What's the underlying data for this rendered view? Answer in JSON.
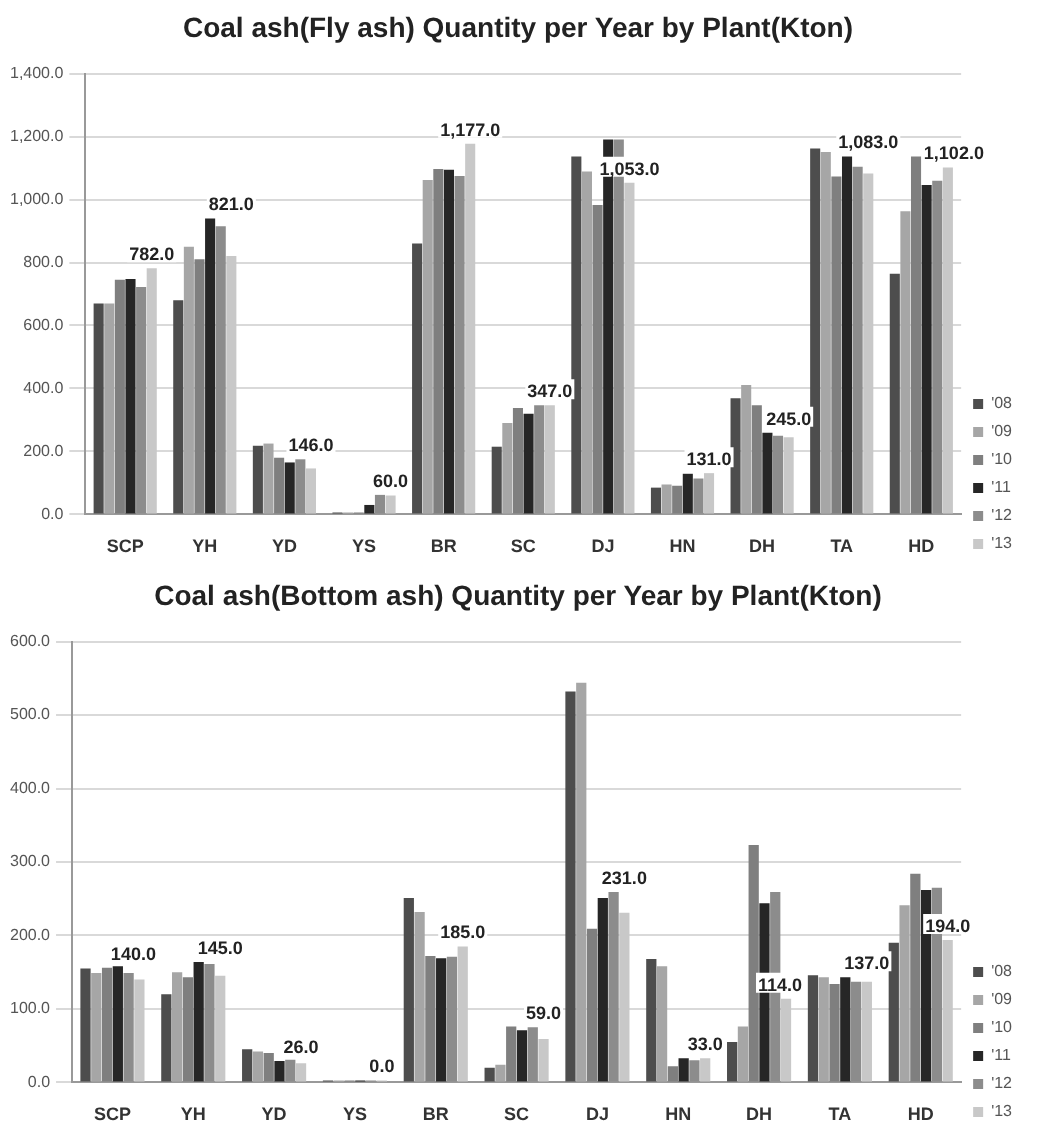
{
  "chart_data": [
    {
      "type": "bar",
      "title": "Coal ash(Fly ash) Quantity per Year by Plant(Kton)",
      "categories": [
        "SCP",
        "YH",
        "YD",
        "YS",
        "BR",
        "SC",
        "DJ",
        "HN",
        "DH",
        "TA",
        "HD"
      ],
      "series": [
        {
          "name": "'08",
          "color": "#4d4d4d",
          "values": [
            670,
            680,
            218,
            0,
            860,
            215,
            1137,
            85,
            369,
            1162,
            764
          ]
        },
        {
          "name": "'09",
          "color": "#a6a6a6",
          "values": [
            670,
            850,
            225,
            0,
            1062,
            290,
            1089,
            95,
            411,
            1151,
            963
          ]
        },
        {
          "name": "'10",
          "color": "#7f7f7f",
          "values": [
            745,
            810,
            180,
            0,
            1097,
            338,
            983,
            91,
            347,
            1073,
            1137
          ]
        },
        {
          "name": "'11",
          "color": "#262626",
          "values": [
            748,
            940,
            165,
            30,
            1095,
            320,
            1191,
            129,
            259,
            1137,
            1046
          ]
        },
        {
          "name": "'12",
          "color": "#8c8c8c",
          "values": [
            722,
            915,
            175,
            62,
            1075,
            347,
            1191,
            114,
            250,
            1104,
            1060
          ]
        },
        {
          "name": "'13",
          "color": "#c8c8c8",
          "values": [
            782,
            821,
            146,
            60,
            1177,
            347,
            1053,
            131,
            245,
            1083,
            1102
          ],
          "value_labels": [
            "782.0",
            "821.0",
            "146.0",
            "60.0",
            "1,177.0",
            "347.0",
            "1,053.0",
            "131.0",
            "245.0",
            "1,083.0",
            "1,102.0"
          ]
        }
      ],
      "ylim": [
        0,
        1400
      ],
      "yticks": [
        {
          "value": 0,
          "label": "0.0"
        },
        {
          "value": 200,
          "label": "200.0"
        },
        {
          "value": 400,
          "label": "400.0"
        },
        {
          "value": 600,
          "label": "600.0"
        },
        {
          "value": 800,
          "label": "800.0"
        },
        {
          "value": 1000,
          "label": "1,000.0"
        },
        {
          "value": 1200,
          "label": "1,200.0"
        },
        {
          "value": 1400,
          "label": "1,400.0"
        }
      ],
      "grid": "y",
      "legend": "bottom right"
    },
    {
      "type": "bar",
      "title": "Coal ash(Bottom ash) Quantity per Year by Plant(Kton)",
      "categories": [
        "SCP",
        "YH",
        "YD",
        "YS",
        "BR",
        "SC",
        "DJ",
        "HN",
        "DH",
        "TA",
        "HD"
      ],
      "series": [
        {
          "name": "'08",
          "color": "#4d4d4d",
          "values": [
            155,
            120,
            45,
            0,
            251,
            20,
            532,
            168,
            55,
            146,
            190
          ]
        },
        {
          "name": "'09",
          "color": "#a6a6a6",
          "values": [
            149,
            150,
            42,
            0,
            232,
            24,
            544,
            158,
            76,
            143,
            241
          ]
        },
        {
          "name": "'10",
          "color": "#7f7f7f",
          "values": [
            156,
            143,
            40,
            0,
            172,
            76,
            209,
            22,
            323,
            134,
            284
          ]
        },
        {
          "name": "'11",
          "color": "#262626",
          "values": [
            158,
            164,
            29,
            0,
            169,
            71,
            251,
            33,
            244,
            143,
            262
          ]
        },
        {
          "name": "'12",
          "color": "#8c8c8c",
          "values": [
            149,
            161,
            31,
            0,
            171,
            75,
            259,
            30,
            259,
            137,
            265
          ]
        },
        {
          "name": "'13",
          "color": "#c8c8c8",
          "values": [
            140,
            145,
            26,
            0,
            185,
            59,
            231,
            33,
            114,
            137,
            194
          ],
          "value_labels": [
            "140.0",
            "145.0",
            "26.0",
            "0.0",
            "185.0",
            "59.0",
            "231.0",
            "33.0",
            "114.0",
            "137.0",
            "194.0"
          ]
        }
      ],
      "ylim": [
        0,
        600
      ],
      "yticks": [
        {
          "value": 0,
          "label": "0.0"
        },
        {
          "value": 100,
          "label": "100.0"
        },
        {
          "value": 200,
          "label": "200.0"
        },
        {
          "value": 300,
          "label": "300.0"
        },
        {
          "value": 400,
          "label": "400.0"
        },
        {
          "value": 500,
          "label": "500.0"
        },
        {
          "value": 600,
          "label": "600.0"
        }
      ],
      "grid": "y",
      "legend": "bottom right"
    }
  ]
}
